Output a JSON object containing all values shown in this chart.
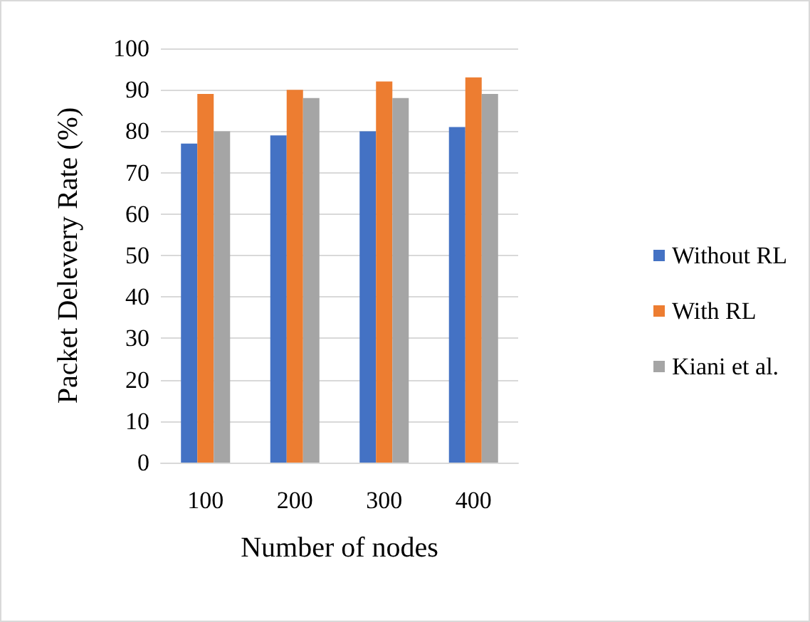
{
  "chart_data": {
    "type": "bar",
    "xlabel": "Number of nodes",
    "ylabel": "Packet Delevery Rate (%)",
    "categories": [
      "100",
      "200",
      "300",
      "400"
    ],
    "series": [
      {
        "name": "Without RL",
        "color": "#4472c4",
        "values": [
          77,
          79,
          80,
          81
        ]
      },
      {
        "name": "With RL",
        "color": "#ed7d31",
        "values": [
          89,
          90,
          92,
          93
        ]
      },
      {
        "name": "Kiani et al.",
        "color": "#a5a5a5",
        "values": [
          80,
          88,
          88,
          89
        ]
      }
    ],
    "ylim": [
      0,
      100
    ],
    "yticks": [
      0,
      10,
      20,
      30,
      40,
      50,
      60,
      70,
      80,
      90,
      100
    ],
    "grid": "y",
    "legend": "right"
  }
}
